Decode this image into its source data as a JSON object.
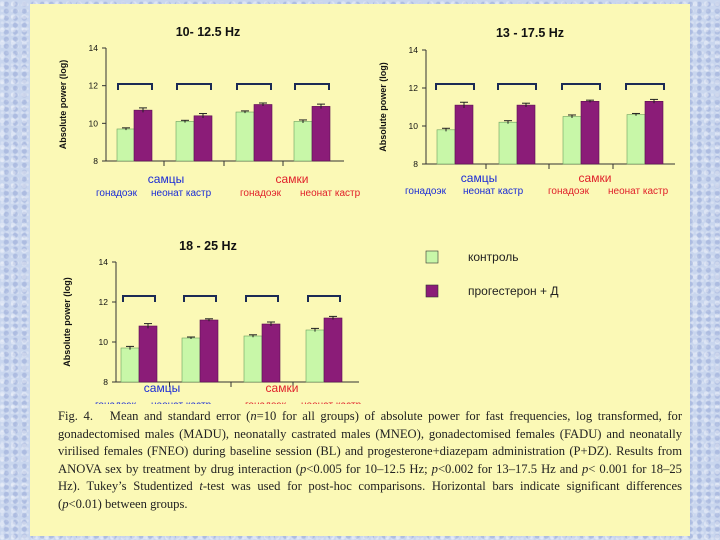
{
  "colors": {
    "control": "#c8f7a8",
    "treatment": "#8b1c78",
    "group_label": "#1a2bd6",
    "female_label": "#e0202a",
    "bracket": "#2a4a8a"
  },
  "legend": {
    "control": "контроль",
    "treatment": "прогестерон + Д"
  },
  "chart_data": [
    {
      "type": "bar",
      "title": "10- 12.5 Hz",
      "ylabel": "Absolute power (log)",
      "ylim": [
        8,
        14
      ],
      "yticks": [
        8,
        10,
        12,
        14
      ],
      "categories": [
        "гонадоэк",
        "неонат кастр",
        "гонадоэк",
        "неонат кастр"
      ],
      "groups": [
        "самцы",
        "самки"
      ],
      "series": [
        {
          "name": "контроль",
          "values": [
            9.7,
            10.1,
            10.6,
            10.1
          ],
          "errors": [
            0.06,
            0.06,
            0.06,
            0.08
          ]
        },
        {
          "name": "прогестерон + Д",
          "values": [
            10.7,
            10.4,
            11.0,
            10.9
          ],
          "errors": [
            0.12,
            0.12,
            0.08,
            0.12
          ]
        }
      ]
    },
    {
      "type": "bar",
      "title": "13 - 17.5 Hz",
      "ylabel": "Absolute power (log)",
      "ylim": [
        8,
        14
      ],
      "yticks": [
        8,
        10,
        12,
        14
      ],
      "categories": [
        "гонадоэк",
        "неонат кастр",
        "гонадоэк",
        "неонат кастр"
      ],
      "groups": [
        "самцы",
        "самки"
      ],
      "series": [
        {
          "name": "контроль",
          "values": [
            9.8,
            10.2,
            10.5,
            10.6
          ],
          "errors": [
            0.08,
            0.08,
            0.08,
            0.06
          ]
        },
        {
          "name": "прогестерон + Д",
          "values": [
            11.1,
            11.1,
            11.3,
            11.3
          ],
          "errors": [
            0.15,
            0.1,
            0.06,
            0.1
          ]
        }
      ]
    },
    {
      "type": "bar",
      "title": "18 - 25 Hz",
      "ylabel": "Absolute power (log)",
      "ylim": [
        8,
        14
      ],
      "yticks": [
        8,
        10,
        12,
        14
      ],
      "categories": [
        "гонадоэк",
        "неонат кастр",
        "гонадоэк",
        "неонат кастр"
      ],
      "groups": [
        "самцы",
        "самки"
      ],
      "series": [
        {
          "name": "контроль",
          "values": [
            9.7,
            10.2,
            10.3,
            10.6
          ],
          "errors": [
            0.08,
            0.05,
            0.06,
            0.08
          ]
        },
        {
          "name": "прогестерон + Д",
          "values": [
            10.8,
            11.1,
            10.9,
            11.2
          ],
          "errors": [
            0.12,
            0.06,
            0.1,
            0.08
          ]
        }
      ]
    }
  ],
  "caption": {
    "p1": "Fig. 4.   Mean and standard error (",
    "n": "n",
    "p2": "=10 for all groups) of absolute power for fast frequencies, log transformed, for gonadectomised males (MADU), neonatally castrated males (MNEO), gonadectomised females (FADU) and neonatally virilised females (FNEO) during baseline session (BL) and progesterone+diazepam administration (P+DZ). Results from ANOVA sex by treatment by drug interaction (",
    "pv1": "p",
    "p3": "<0.005 for 10–12.5 Hz; ",
    "pv2": "p",
    "p4": "<0.002 for 13–17.5 Hz and ",
    "pv3": "p",
    "p5": "< 0.001 for 18–25 Hz). Tukey’s Studentized ",
    "t": "t",
    "p6": "-test was used for post-hoc comparisons. Horizontal bars indicate significant differences (",
    "pv4": "p",
    "p7": "<0.01) between groups."
  }
}
